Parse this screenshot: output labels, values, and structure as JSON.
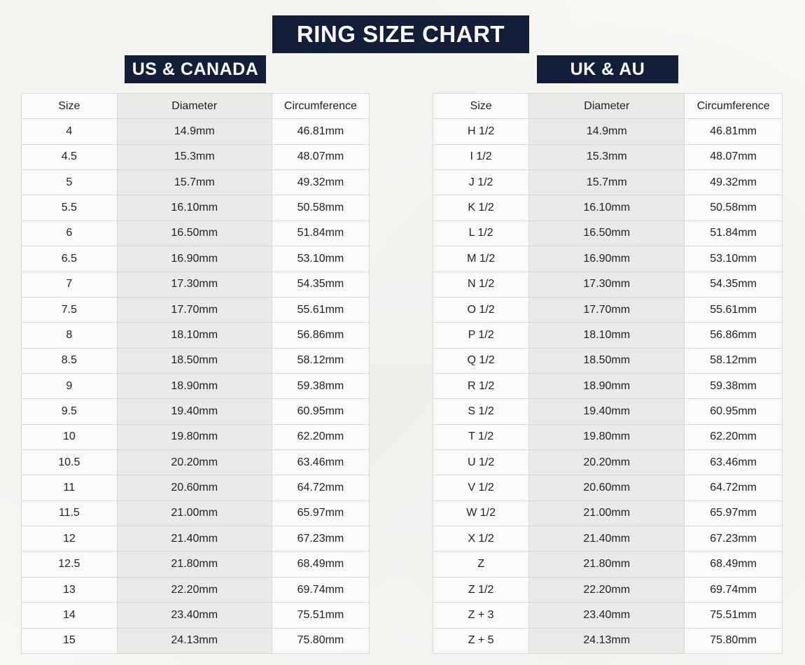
{
  "page_title": "RING SIZE CHART",
  "colors": {
    "banner_bg": "#131f38",
    "banner_text": "#ffffff",
    "page_bg": "#f8f7f4",
    "cell_bg": "#fafafa",
    "diam_bg": "#e9e9e7",
    "border": "#d8d8d7",
    "text": "#222222"
  },
  "chart_data": [
    {
      "type": "table",
      "title": "US & CANADA",
      "columns": [
        "Size",
        "Diameter",
        "Circumference"
      ],
      "rows": [
        [
          "4",
          "14.9mm",
          "46.81mm"
        ],
        [
          "4.5",
          "15.3mm",
          "48.07mm"
        ],
        [
          "5",
          "15.7mm",
          "49.32mm"
        ],
        [
          "5.5",
          "16.10mm",
          "50.58mm"
        ],
        [
          "6",
          "16.50mm",
          "51.84mm"
        ],
        [
          "6.5",
          "16.90mm",
          "53.10mm"
        ],
        [
          "7",
          "17.30mm",
          "54.35mm"
        ],
        [
          "7.5",
          "17.70mm",
          "55.61mm"
        ],
        [
          "8",
          "18.10mm",
          "56.86mm"
        ],
        [
          "8.5",
          "18.50mm",
          "58.12mm"
        ],
        [
          "9",
          "18.90mm",
          "59.38mm"
        ],
        [
          "9.5",
          "19.40mm",
          "60.95mm"
        ],
        [
          "10",
          "19.80mm",
          "62.20mm"
        ],
        [
          "10.5",
          "20.20mm",
          "63.46mm"
        ],
        [
          "11",
          "20.60mm",
          "64.72mm"
        ],
        [
          "11.5",
          "21.00mm",
          "65.97mm"
        ],
        [
          "12",
          "21.40mm",
          "67.23mm"
        ],
        [
          "12.5",
          "21.80mm",
          "68.49mm"
        ],
        [
          "13",
          "22.20mm",
          "69.74mm"
        ],
        [
          "14",
          "23.40mm",
          "75.51mm"
        ],
        [
          "15",
          "24.13mm",
          "75.80mm"
        ]
      ]
    },
    {
      "type": "table",
      "title": "UK & AU",
      "columns": [
        "Size",
        "Diameter",
        "Circumference"
      ],
      "rows": [
        [
          "H 1/2",
          "14.9mm",
          "46.81mm"
        ],
        [
          "I 1/2",
          "15.3mm",
          "48.07mm"
        ],
        [
          "J 1/2",
          "15.7mm",
          "49.32mm"
        ],
        [
          "K 1/2",
          "16.10mm",
          "50.58mm"
        ],
        [
          "L 1/2",
          "16.50mm",
          "51.84mm"
        ],
        [
          "M 1/2",
          "16.90mm",
          "53.10mm"
        ],
        [
          "N 1/2",
          "17.30mm",
          "54.35mm"
        ],
        [
          "O 1/2",
          "17.70mm",
          "55.61mm"
        ],
        [
          "P 1/2",
          "18.10mm",
          "56.86mm"
        ],
        [
          "Q 1/2",
          "18.50mm",
          "58.12mm"
        ],
        [
          "R 1/2",
          "18.90mm",
          "59.38mm"
        ],
        [
          "S 1/2",
          "19.40mm",
          "60.95mm"
        ],
        [
          "T 1/2",
          "19.80mm",
          "62.20mm"
        ],
        [
          "U 1/2",
          "20.20mm",
          "63.46mm"
        ],
        [
          "V 1/2",
          "20.60mm",
          "64.72mm"
        ],
        [
          "W 1/2",
          "21.00mm",
          "65.97mm"
        ],
        [
          "X 1/2",
          "21.40mm",
          "67.23mm"
        ],
        [
          "Z",
          "21.80mm",
          "68.49mm"
        ],
        [
          "Z 1/2",
          "22.20mm",
          "69.74mm"
        ],
        [
          "Z + 3",
          "23.40mm",
          "75.51mm"
        ],
        [
          "Z + 5",
          "24.13mm",
          "75.80mm"
        ]
      ]
    }
  ]
}
